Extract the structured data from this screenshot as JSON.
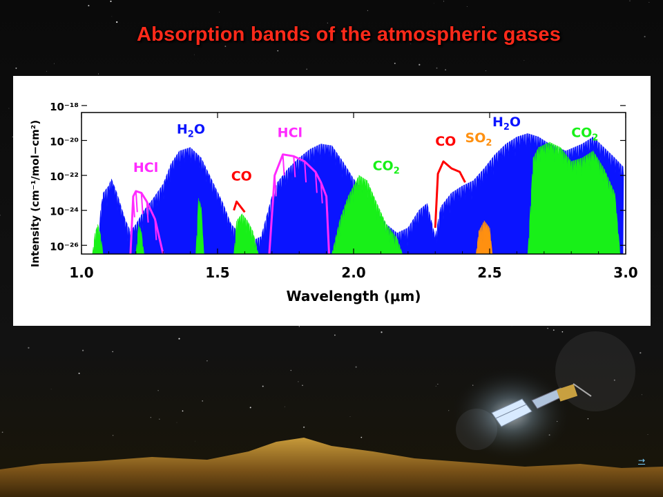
{
  "slide": {
    "title": "Absorption bands of the atmospheric gases",
    "nav_arrow": "→"
  },
  "colors": {
    "title": "#ff2a1a",
    "H2O": "#0a14ff",
    "CO2": "#18f018",
    "HCl": "#ff2aff",
    "CO": "#ff0000",
    "SO2": "#ff9010"
  },
  "chart_data": {
    "type": "area",
    "xlabel": "Wavelength (μm)",
    "ylabel": "Intensity (cm⁻¹/mol−cm²)",
    "xlim": [
      1.0,
      3.0
    ],
    "ylim_log10": [
      -26.5,
      -18.4
    ],
    "y_scale": "log",
    "x_ticks": [
      "1.0",
      "1.5",
      "2.0",
      "2.5",
      "3.0"
    ],
    "x_tick_values": [
      1.0,
      1.5,
      2.0,
      2.5,
      3.0
    ],
    "y_ticks": [
      "10⁻¹⁸",
      "10⁻²⁰",
      "10⁻²²",
      "10⁻²⁴",
      "10⁻²⁶"
    ],
    "y_tick_values_log10": [
      -18,
      -20,
      -22,
      -24,
      -26
    ],
    "series": [
      {
        "name": "H2O",
        "label_main": "H",
        "label_sub": "2",
        "label_tail": "O",
        "envelope_log10": [
          [
            1.06,
            -26.5
          ],
          [
            1.07,
            -24.0
          ],
          [
            1.08,
            -23.0
          ],
          [
            1.1,
            -22.6
          ],
          [
            1.11,
            -22.2
          ],
          [
            1.13,
            -23.0
          ],
          [
            1.16,
            -24.5
          ],
          [
            1.18,
            -25.2
          ],
          [
            1.2,
            -24.8
          ],
          [
            1.23,
            -24.0
          ],
          [
            1.26,
            -23.4
          ],
          [
            1.3,
            -22.5
          ],
          [
            1.33,
            -21.3
          ],
          [
            1.36,
            -20.6
          ],
          [
            1.4,
            -20.4
          ],
          [
            1.44,
            -21.0
          ],
          [
            1.48,
            -22.3
          ],
          [
            1.52,
            -23.6
          ],
          [
            1.55,
            -24.8
          ],
          [
            1.58,
            -25.3
          ],
          [
            1.62,
            -25.8
          ],
          [
            1.66,
            -25.5
          ],
          [
            1.7,
            -23.2
          ],
          [
            1.72,
            -22.4
          ],
          [
            1.76,
            -21.6
          ],
          [
            1.8,
            -21.0
          ],
          [
            1.84,
            -20.5
          ],
          [
            1.88,
            -20.2
          ],
          [
            1.92,
            -20.3
          ],
          [
            1.96,
            -21.2
          ],
          [
            2.0,
            -22.2
          ],
          [
            2.04,
            -23.0
          ],
          [
            2.08,
            -24.0
          ],
          [
            2.12,
            -24.8
          ],
          [
            2.16,
            -25.3
          ],
          [
            2.2,
            -25.0
          ],
          [
            2.24,
            -24.0
          ],
          [
            2.27,
            -23.6
          ],
          [
            2.3,
            -25.5
          ],
          [
            2.32,
            -23.8
          ],
          [
            2.36,
            -23.0
          ],
          [
            2.4,
            -22.6
          ],
          [
            2.44,
            -22.3
          ],
          [
            2.48,
            -21.6
          ],
          [
            2.52,
            -20.8
          ],
          [
            2.56,
            -20.2
          ],
          [
            2.6,
            -19.8
          ],
          [
            2.64,
            -19.6
          ],
          [
            2.68,
            -19.8
          ],
          [
            2.72,
            -20.2
          ],
          [
            2.78,
            -20.6
          ],
          [
            2.84,
            -20.2
          ],
          [
            2.88,
            -19.8
          ],
          [
            2.92,
            -20.4
          ],
          [
            2.96,
            -21.0
          ],
          [
            2.99,
            -21.5
          ]
        ]
      },
      {
        "name": "CO2",
        "label_main": "CO",
        "label_sub": "2",
        "bands_log10": [
          [
            [
              1.04,
              -26.5
            ],
            [
              1.05,
              -25.3
            ],
            [
              1.06,
              -24.8
            ],
            [
              1.07,
              -25.4
            ],
            [
              1.08,
              -26.5
            ]
          ],
          [
            [
              1.2,
              -26.5
            ],
            [
              1.21,
              -24.8
            ],
            [
              1.22,
              -25.2
            ],
            [
              1.23,
              -26.5
            ]
          ],
          [
            [
              1.42,
              -26.5
            ],
            [
              1.43,
              -23.3
            ],
            [
              1.44,
              -23.8
            ],
            [
              1.45,
              -26.5
            ]
          ],
          [
            [
              1.56,
              -26.5
            ],
            [
              1.57,
              -24.6
            ],
            [
              1.59,
              -24.2
            ],
            [
              1.61,
              -24.6
            ],
            [
              1.63,
              -25.2
            ],
            [
              1.65,
              -26.5
            ]
          ],
          [
            [
              1.92,
              -26.5
            ],
            [
              1.95,
              -24.5
            ],
            [
              1.98,
              -23.2
            ],
            [
              2.02,
              -22.0
            ],
            [
              2.05,
              -22.3
            ],
            [
              2.08,
              -23.4
            ],
            [
              2.12,
              -24.8
            ],
            [
              2.16,
              -25.6
            ],
            [
              2.18,
              -26.5
            ]
          ],
          [
            [
              2.64,
              -26.5
            ],
            [
              2.66,
              -21.0
            ],
            [
              2.68,
              -20.4
            ],
            [
              2.72,
              -20.1
            ],
            [
              2.76,
              -20.4
            ],
            [
              2.8,
              -21.2
            ],
            [
              2.84,
              -21.0
            ],
            [
              2.88,
              -20.6
            ],
            [
              2.92,
              -21.6
            ],
            [
              2.96,
              -23.0
            ],
            [
              2.98,
              -26.5
            ]
          ]
        ]
      },
      {
        "name": "HCl",
        "label_main": "HCl",
        "bands_log10": [
          [
            [
              1.18,
              -26.5
            ],
            [
              1.19,
              -23.2
            ],
            [
              1.2,
              -22.9
            ],
            [
              1.22,
              -23.0
            ],
            [
              1.24,
              -23.5
            ],
            [
              1.27,
              -24.5
            ],
            [
              1.3,
              -26.5
            ]
          ],
          [
            [
              1.69,
              -26.5
            ],
            [
              1.71,
              -22.0
            ],
            [
              1.74,
              -20.8
            ],
            [
              1.78,
              -20.9
            ],
            [
              1.82,
              -21.2
            ],
            [
              1.86,
              -21.8
            ],
            [
              1.88,
              -22.4
            ],
            [
              1.9,
              -23.2
            ],
            [
              1.91,
              -26.5
            ]
          ]
        ]
      },
      {
        "name": "CO",
        "label_main": "CO",
        "bands_log10": [
          [
            [
              1.56,
              -24.0
            ],
            [
              1.57,
              -23.5
            ],
            [
              1.58,
              -23.7
            ],
            [
              1.6,
              -24.1
            ]
          ],
          [
            [
              2.3,
              -25.0
            ],
            [
              2.31,
              -21.9
            ],
            [
              2.33,
              -21.2
            ],
            [
              2.36,
              -21.6
            ],
            [
              2.39,
              -21.8
            ],
            [
              2.41,
              -22.4
            ]
          ]
        ]
      },
      {
        "name": "SO2",
        "label_main": "SO",
        "label_sub": "2",
        "bands_log10": [
          [
            [
              2.45,
              -26.5
            ],
            [
              2.46,
              -25.2
            ],
            [
              2.48,
              -24.6
            ],
            [
              2.5,
              -25.0
            ],
            [
              2.51,
              -26.5
            ]
          ]
        ]
      }
    ]
  }
}
